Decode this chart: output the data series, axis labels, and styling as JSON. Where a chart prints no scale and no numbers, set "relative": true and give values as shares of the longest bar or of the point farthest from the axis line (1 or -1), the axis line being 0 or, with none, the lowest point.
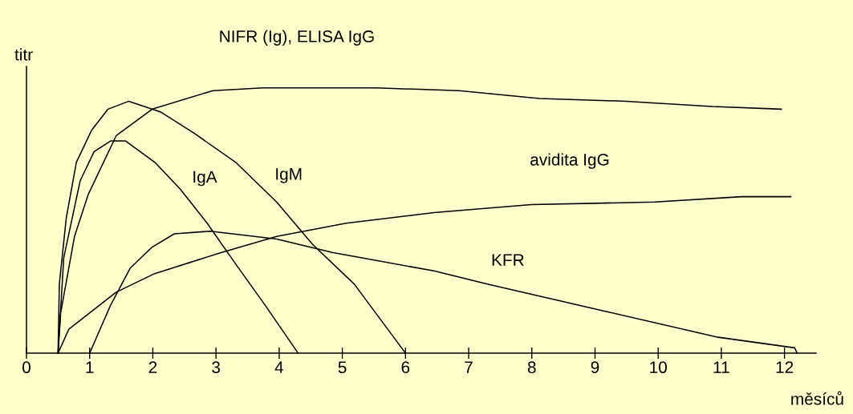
{
  "chart_data": {
    "type": "line",
    "relative": true,
    "xlabel": "měsíců",
    "ylabel": "titr",
    "xlim": [
      0,
      12.5
    ],
    "xticks": [
      0,
      1,
      2,
      3,
      4,
      5,
      6,
      7,
      8,
      9,
      10,
      11,
      12
    ],
    "grid": false,
    "legend": false,
    "marker": "none",
    "line_style": "solid",
    "series": [
      {
        "name": "NIFR (Ig), ELISA IgG",
        "color": "#000000",
        "x": [
          0.5,
          0.54,
          0.76,
          0.98,
          1.42,
          1.99,
          2.95,
          3.74,
          5.54,
          6.85,
          8.12,
          9.49,
          10.86,
          11.95
        ],
        "values": [
          0,
          0.15,
          0.44,
          0.6,
          0.82,
          0.92,
          0.99,
          1.0,
          1.0,
          0.99,
          0.96,
          0.95,
          0.93,
          0.92
        ]
      },
      {
        "name": "IgA",
        "color": "#000000",
        "x": [
          0.5,
          0.59,
          0.85,
          1.07,
          1.33,
          1.57,
          2.03,
          2.43,
          2.86,
          3.3,
          3.78,
          4.3
        ],
        "values": [
          0,
          0.36,
          0.65,
          0.76,
          0.8,
          0.8,
          0.72,
          0.62,
          0.49,
          0.34,
          0.18,
          0
        ]
      },
      {
        "name": "IgM",
        "color": "#000000",
        "x": [
          0.5,
          0.52,
          0.63,
          0.79,
          1.03,
          1.29,
          1.62,
          2.12,
          2.65,
          3.31,
          3.96,
          4.53,
          5.19,
          6.0
        ],
        "values": [
          0,
          0.26,
          0.51,
          0.72,
          0.84,
          0.92,
          0.95,
          0.91,
          0.83,
          0.72,
          0.57,
          0.41,
          0.26,
          0
        ]
      },
      {
        "name": "avidita IgG",
        "color": "#000000",
        "x": [
          0.5,
          0.67,
          1.42,
          2.03,
          3.09,
          3.96,
          5.06,
          6.45,
          7.99,
          9.95,
          11.32,
          12.1
        ],
        "values": [
          0,
          0.09,
          0.23,
          0.3,
          0.38,
          0.44,
          0.49,
          0.53,
          0.56,
          0.57,
          0.59,
          0.59
        ]
      },
      {
        "name": "KFR",
        "color": "#000000",
        "x": [
          1.0,
          1.33,
          1.64,
          1.99,
          2.34,
          2.91,
          3.96,
          4.84,
          6.45,
          7.31,
          9.12,
          10.95,
          12.16,
          12.2
        ],
        "values": [
          0,
          0.18,
          0.32,
          0.4,
          0.45,
          0.46,
          0.43,
          0.38,
          0.31,
          0.26,
          0.16,
          0.06,
          0.02,
          0
        ]
      }
    ]
  }
}
